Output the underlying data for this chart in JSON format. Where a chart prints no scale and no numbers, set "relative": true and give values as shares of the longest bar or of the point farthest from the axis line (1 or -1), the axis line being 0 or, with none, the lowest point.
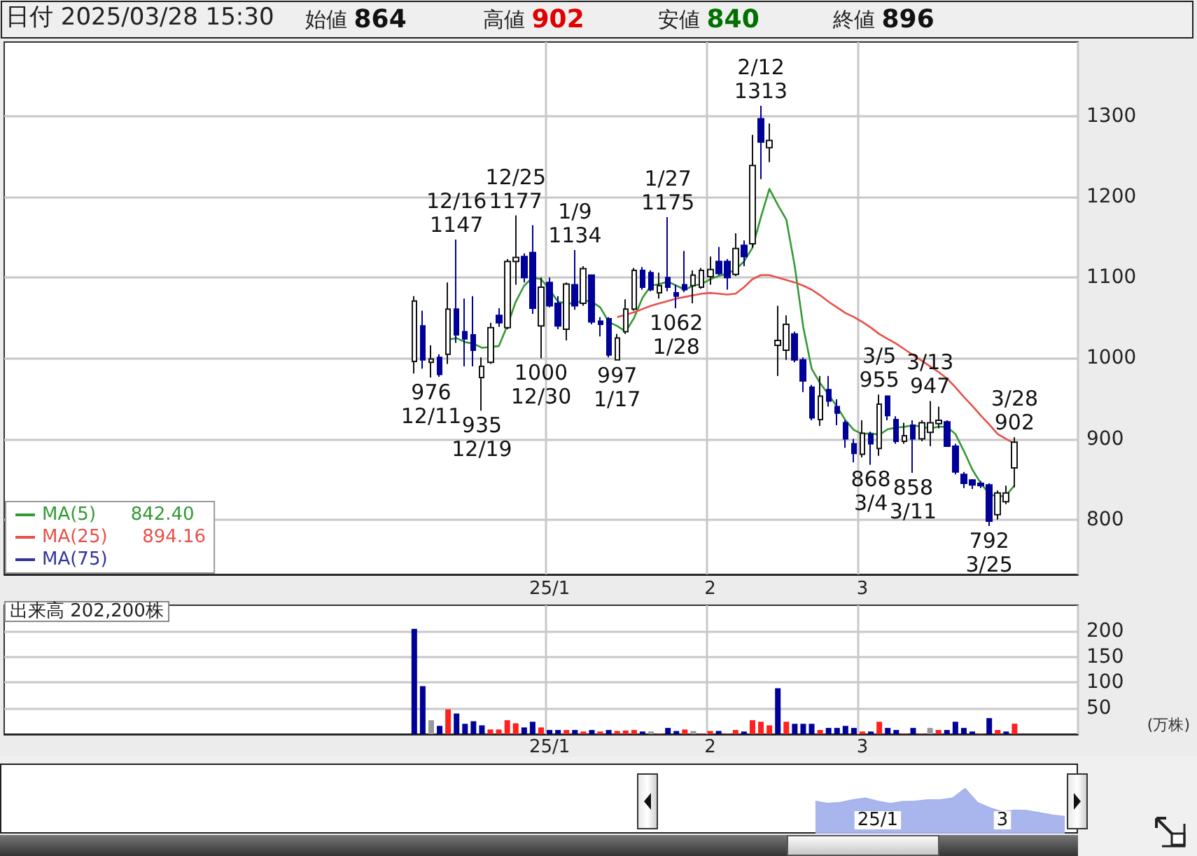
{
  "chart_data": [
    {
      "type": "candlestick",
      "title": "日付 2025/03/28 15:30",
      "annotations": [
        "始値 864",
        "高値 902",
        "安値 840",
        "終値 896",
        "842.40",
        "894.16",
        {
          "text": "976\n12/11",
          "y": 976
        },
        {
          "text": "12/16\n1147",
          "y": 1147
        },
        {
          "text": "935\n12/19",
          "y": 935
        },
        {
          "text": "12/25\n1177",
          "y": 1177
        },
        {
          "text": "1000\n12/30",
          "y": 1000
        },
        {
          "text": "1/9\n1134",
          "y": 1134
        },
        {
          "text": "997\n1/17",
          "y": 997
        },
        {
          "text": "1/27\n1175",
          "y": 1175
        },
        {
          "text": "1062\n1/28",
          "y": 1062
        },
        {
          "text": "2/12\n1313",
          "y": 1313
        },
        {
          "text": "868\n3/4",
          "y": 868
        },
        {
          "text": "3/5\n955",
          "y": 955
        },
        {
          "text": "858\n3/11",
          "y": 858
        },
        {
          "text": "3/13\n947",
          "y": 947
        },
        {
          "text": "792\n3/25",
          "y": 792
        },
        {
          "text": "3/28\n902",
          "y": 902
        }
      ],
      "categories": [
        null,
        null,
        null,
        null,
        null,
        null,
        null,
        null,
        null,
        null,
        null,
        null,
        null,
        null,
        null,
        null,
        null,
        null,
        null,
        null,
        null,
        null,
        null,
        null,
        null,
        null,
        null,
        null,
        null,
        null,
        null,
        null,
        null,
        null,
        null,
        null,
        null,
        null,
        null,
        null,
        null,
        null,
        null,
        null,
        null,
        null,
        null,
        null,
        null,
        null,
        null,
        null,
        null,
        null,
        null,
        null,
        null,
        null,
        null,
        null,
        null,
        null,
        null,
        null,
        "25/1",
        null,
        null,
        null,
        null,
        null,
        null,
        null,
        null,
        null,
        null,
        null,
        null,
        null,
        null,
        null,
        null,
        null,
        null,
        "2",
        null,
        null,
        null,
        null,
        null,
        null,
        null,
        null,
        null,
        null,
        null,
        null,
        null,
        null,
        null,
        null,
        null,
        "3",
        null,
        null,
        null,
        null,
        null,
        null,
        null,
        null,
        null,
        null,
        null,
        null,
        null,
        null,
        null,
        null,
        null,
        null,
        null,
        null,
        null,
        null,
        null,
        null,
        null
      ],
      "ohlc": [
        null,
        null,
        null,
        null,
        null,
        null,
        null,
        null,
        null,
        null,
        null,
        null,
        null,
        null,
        null,
        null,
        null,
        null,
        null,
        null,
        null,
        null,
        null,
        null,
        null,
        null,
        null,
        null,
        null,
        null,
        null,
        null,
        null,
        null,
        null,
        null,
        null,
        null,
        null,
        null,
        null,
        null,
        null,
        null,
        null,
        null,
        null,
        null,
        [
          996,
          1077,
          981,
          1071
        ],
        [
          1040,
          1059,
          987,
          998
        ],
        [
          995,
          1016,
          976,
          999
        ],
        [
          1001,
          1005,
          977,
          980
        ],
        [
          1005,
          1094,
          993,
          1061
        ],
        [
          1061,
          1147,
          1019,
          1029
        ],
        [
          1033,
          1074,
          990,
          1024
        ],
        [
          1029,
          1077,
          990,
          1010
        ],
        [
          976,
          1001,
          935,
          990
        ],
        [
          995,
          1044,
          993,
          1038
        ],
        [
          1053,
          1062,
          1039,
          1044
        ],
        [
          1038,
          1123,
          1036,
          1120
        ],
        [
          1120,
          1177,
          1091,
          1125
        ],
        [
          1126,
          1130,
          1094,
          1100
        ],
        [
          1131,
          1165,
          1055,
          1062
        ],
        [
          1040,
          1100,
          1000,
          1088
        ],
        [
          1094,
          1100,
          1063,
          1065
        ],
        [
          1068,
          1077,
          1036,
          1040
        ],
        [
          1036,
          1094,
          1022,
          1092
        ],
        [
          1091,
          1134,
          1060,
          1065
        ],
        [
          1068,
          1114,
          1065,
          1111
        ],
        [
          1103,
          1104,
          1042,
          1045
        ],
        [
          1046,
          1051,
          1027,
          1042
        ],
        [
          1049,
          1051,
          1001,
          1004
        ],
        [
          998,
          1030,
          997,
          1025
        ],
        [
          1033,
          1073,
          1030,
          1061
        ],
        [
          1061,
          1112,
          1059,
          1109
        ],
        [
          1109,
          1113,
          1085,
          1088
        ],
        [
          1106,
          1109,
          1083,
          1085
        ],
        [
          1081,
          1106,
          1074,
          1090
        ],
        [
          1100,
          1175,
          1083,
          1088
        ],
        [
          1081,
          1091,
          1062,
          1077
        ],
        [
          1091,
          1133,
          1082,
          1085
        ],
        [
          1090,
          1109,
          1068,
          1103
        ],
        [
          1088,
          1112,
          1086,
          1109
        ],
        [
          1101,
          1126,
          1091,
          1110
        ],
        [
          1120,
          1138,
          1103,
          1105
        ],
        [
          1120,
          1123,
          1085,
          1100
        ],
        [
          1104,
          1155,
          1102,
          1136
        ],
        [
          1140,
          1146,
          1114,
          1126
        ],
        [
          1142,
          1277,
          1137,
          1239
        ],
        [
          1297,
          1313,
          1222,
          1268
        ],
        [
          1261,
          1291,
          1243,
          1270
        ],
        [
          1016,
          1065,
          978,
          1022
        ],
        [
          1010,
          1053,
          998,
          1042
        ],
        [
          1030,
          1033,
          995,
          998
        ],
        [
          998,
          1001,
          958,
          972
        ],
        [
          964,
          967,
          923,
          926
        ],
        [
          924,
          978,
          916,
          953
        ],
        [
          961,
          978,
          940,
          947
        ],
        [
          940,
          949,
          917,
          932
        ],
        [
          920,
          923,
          889,
          900
        ],
        [
          894,
          900,
          871,
          882
        ],
        [
          881,
          923,
          877,
          907
        ],
        [
          906,
          909,
          868,
          894
        ],
        [
          888,
          955,
          879,
          943
        ],
        [
          953,
          953,
          923,
          929
        ],
        [
          924,
          928,
          894,
          897
        ],
        [
          897,
          920,
          894,
          904
        ],
        [
          917,
          923,
          858,
          900
        ],
        [
          900,
          923,
          897,
          920
        ],
        [
          908,
          947,
          891,
          920
        ],
        [
          919,
          940,
          913,
          923
        ],
        [
          921,
          923,
          891,
          891
        ],
        [
          891,
          894,
          856,
          859
        ],
        [
          856,
          859,
          839,
          845
        ],
        [
          849,
          850,
          838,
          843
        ],
        [
          845,
          848,
          839,
          842
        ],
        [
          843,
          845,
          792,
          798
        ],
        [
          806,
          836,
          800,
          833
        ],
        [
          822,
          842,
          819,
          833
        ],
        [
          864,
          902,
          840,
          896
        ],
        null,
        null,
        null,
        null,
        null,
        null,
        null
      ],
      "colors": [
        null,
        null,
        null,
        null,
        null,
        null,
        null,
        null,
        null,
        null,
        null,
        null,
        null,
        null,
        null,
        null,
        null,
        null,
        null,
        null,
        null,
        null,
        null,
        null,
        null,
        null,
        null,
        null,
        null,
        null,
        null,
        null,
        null,
        null,
        null,
        null,
        null,
        null,
        null,
        null,
        null,
        null,
        null,
        null,
        null,
        null,
        null,
        null,
        "#ffffff",
        "#000099",
        "#ffffff",
        "#000099",
        "#ffffff",
        "#000099",
        "#000099",
        "#000099",
        "#ffffff",
        "#ffffff",
        "#000099",
        "#ffffff",
        "#ffffff",
        "#000099",
        "#000099",
        "#ffffff",
        "#000099",
        "#000099",
        "#ffffff",
        "#000099",
        "#ffffff",
        "#000099",
        "#000099",
        "#000099",
        "#ffffff",
        "#ffffff",
        "#ffffff",
        "#000099",
        "#000099",
        "#ffffff",
        "#000099",
        "#000099",
        "#000099",
        "#ffffff",
        "#ffffff",
        "#ffffff",
        "#000099",
        "#000099",
        "#ffffff",
        "#000099",
        "#ffffff",
        "#000099",
        "#ffffff",
        "#ffffff",
        "#ffffff",
        "#000099",
        "#000099",
        "#000099",
        "#ffffff",
        "#000099",
        "#000099",
        "#000099",
        "#000099",
        "#ffffff",
        "#000099",
        "#ffffff",
        "#000099",
        "#000099",
        "#ffffff",
        "#000099",
        "#ffffff",
        "#ffffff",
        "#ffffff",
        "#000099",
        "#000099",
        "#000099",
        "#000099",
        "#000099",
        "#000099",
        "#ffffff",
        "#ffffff",
        "#ffffff",
        null,
        null,
        null,
        null,
        null,
        null,
        null
      ],
      "series": [
        {
          "name": "MA(5)",
          "type": "line",
          "color": "#339933",
          "values": [
            null,
            null,
            null,
            null,
            null,
            null,
            null,
            null,
            null,
            null,
            null,
            null,
            null,
            null,
            null,
            null,
            null,
            null,
            null,
            null,
            null,
            null,
            null,
            null,
            null,
            null,
            null,
            null,
            null,
            null,
            null,
            null,
            null,
            null,
            null,
            null,
            null,
            null,
            null,
            null,
            null,
            null,
            null,
            null,
            null,
            null,
            null,
            null,
            null,
            null,
            null,
            null,
            1023,
            1025,
            1020,
            1018,
            1013,
            1014,
            1015,
            1040,
            1070,
            1090,
            1100,
            1098,
            1085,
            1070,
            1068,
            1068,
            1072,
            1070,
            1063,
            1045,
            1040,
            1033,
            1050,
            1075,
            1090,
            1092,
            1095,
            1090,
            1085,
            1090,
            1092,
            1098,
            1102,
            1105,
            1110,
            1120,
            1137,
            1175,
            1210,
            1190,
            1172,
            1114,
            1039,
            987,
            969,
            955,
            940,
            923,
            911,
            906,
            907,
            905,
            912,
            914,
            915,
            917,
            915,
            913,
            915,
            915,
            906,
            885,
            862,
            845,
            832,
            828,
            830,
            842.4,
            null,
            null,
            null,
            null,
            null,
            null,
            null
          ]
        },
        {
          "name": "MA(25)",
          "type": "line",
          "color": "#e8504a",
          "values": [
            null,
            null,
            null,
            null,
            null,
            null,
            null,
            null,
            null,
            null,
            null,
            null,
            null,
            null,
            null,
            null,
            null,
            null,
            null,
            null,
            null,
            null,
            null,
            null,
            null,
            null,
            null,
            null,
            null,
            null,
            null,
            null,
            null,
            null,
            null,
            null,
            null,
            null,
            null,
            null,
            null,
            null,
            null,
            null,
            null,
            null,
            null,
            null,
            null,
            null,
            null,
            null,
            null,
            null,
            null,
            null,
            null,
            null,
            null,
            null,
            null,
            null,
            null,
            null,
            null,
            null,
            null,
            null,
            null,
            null,
            null,
            null,
            1051,
            1054,
            1057,
            1061,
            1065,
            1068,
            1071,
            1074,
            1076,
            1078,
            1080,
            1081,
            1080,
            1079,
            1080,
            1088,
            1098,
            1103,
            1103,
            1100,
            1097,
            1094,
            1090,
            1085,
            1078,
            1070,
            1063,
            1056,
            1051,
            1045,
            1038,
            1030,
            1024,
            1018,
            1011,
            1004,
            997,
            990,
            983,
            975,
            964,
            952,
            941,
            929,
            918,
            906,
            900,
            894.16,
            null,
            null,
            null,
            null,
            null,
            null,
            null
          ]
        },
        {
          "name": "MA(75)",
          "type": "line",
          "color": "#333399",
          "values": [
            null,
            null,
            null,
            null,
            null,
            null,
            null,
            null,
            null,
            null,
            null,
            null,
            null,
            null,
            null,
            null,
            null,
            null,
            null,
            null,
            null,
            null,
            null,
            null,
            null,
            null,
            null,
            null,
            null,
            null,
            null,
            null,
            null,
            null,
            null,
            null,
            null,
            null,
            null,
            null,
            null,
            null,
            null,
            null,
            null,
            null,
            null,
            null,
            null,
            null,
            null,
            null,
            null,
            null,
            null,
            null,
            null,
            null,
            null,
            null,
            null,
            null,
            null,
            null,
            null,
            null,
            null,
            null,
            null,
            null,
            null,
            null,
            null,
            null,
            null,
            null,
            null,
            null,
            null,
            null,
            null,
            null,
            null,
            null,
            null,
            null,
            null,
            null,
            null,
            null,
            null,
            null,
            null,
            null,
            null,
            null,
            null,
            null,
            null,
            null,
            null,
            null,
            null,
            null,
            null,
            null,
            null,
            null,
            null,
            null,
            null,
            null,
            null,
            null,
            null,
            null,
            null,
            null,
            null,
            null,
            null,
            null,
            null,
            null,
            null,
            null,
            null
          ]
        }
      ],
      "ylim": [
        732,
        1392
      ],
      "yticks": [
        800,
        900,
        1000,
        1100,
        1200,
        1300
      ],
      "grid": true,
      "legend": "bottom left",
      "marker": "none"
    },
    {
      "type": "bar",
      "title": "出来高 202,200株",
      "ylabel": "(万株)",
      "categories": [
        null,
        null,
        null,
        null,
        null,
        null,
        null,
        null,
        null,
        null,
        null,
        null,
        null,
        null,
        null,
        null,
        null,
        null,
        null,
        null,
        null,
        null,
        null,
        null,
        null,
        null,
        null,
        null,
        null,
        null,
        null,
        null,
        null,
        null,
        null,
        null,
        null,
        null,
        null,
        null,
        null,
        null,
        null,
        null,
        null,
        null,
        null,
        null,
        null,
        null,
        null,
        null,
        null,
        null,
        null,
        null,
        null,
        null,
        null,
        null,
        null,
        null,
        null,
        null,
        "25/1",
        null,
        null,
        null,
        null,
        null,
        null,
        null,
        null,
        null,
        null,
        null,
        null,
        null,
        null,
        null,
        null,
        null,
        null,
        "2",
        null,
        null,
        null,
        null,
        null,
        null,
        null,
        null,
        null,
        null,
        null,
        null,
        null,
        null,
        null,
        null,
        null,
        "3",
        null,
        null,
        null,
        null,
        null,
        null,
        null,
        null,
        null,
        null,
        null,
        null,
        null,
        null,
        null,
        null,
        null,
        null,
        null,
        null,
        null,
        null,
        null,
        null,
        null
      ],
      "values": [
        null,
        null,
        null,
        null,
        null,
        null,
        null,
        null,
        null,
        null,
        null,
        null,
        null,
        null,
        null,
        null,
        null,
        null,
        null,
        null,
        null,
        null,
        null,
        null,
        null,
        null,
        null,
        null,
        null,
        null,
        null,
        null,
        null,
        null,
        null,
        null,
        null,
        null,
        null,
        null,
        null,
        null,
        null,
        null,
        null,
        null,
        null,
        null,
        204,
        93,
        27,
        16,
        48,
        40,
        20,
        25,
        17,
        9,
        9,
        27,
        21,
        13,
        24,
        13,
        8,
        8,
        8,
        8,
        5,
        8,
        5,
        8,
        6,
        7,
        8,
        5,
        5,
        1,
        12,
        6,
        9,
        6,
        1,
        6,
        6,
        1,
        8,
        5,
        27,
        24,
        17,
        89,
        24,
        20,
        20,
        20,
        8,
        12,
        12,
        16,
        12,
        5,
        5,
        24,
        12,
        8,
        1,
        12,
        1,
        12,
        8,
        8,
        24,
        12,
        5,
        1,
        31,
        8,
        5,
        20.22,
        null,
        null,
        null,
        null,
        null,
        null,
        null
      ],
      "colors": [
        null,
        null,
        null,
        null,
        null,
        null,
        null,
        null,
        null,
        null,
        null,
        null,
        null,
        null,
        null,
        null,
        null,
        null,
        null,
        null,
        null,
        null,
        null,
        null,
        null,
        null,
        null,
        null,
        null,
        null,
        null,
        null,
        null,
        null,
        null,
        null,
        null,
        null,
        null,
        null,
        null,
        null,
        null,
        null,
        null,
        null,
        null,
        null,
        "#000099",
        "#000099",
        "#999999",
        "#000099",
        "#ff2020",
        "#000099",
        "#000099",
        "#000099",
        "#000099",
        "#ff2020",
        "#ff2020",
        "#ff2020",
        "#ff2020",
        "#000099",
        "#000099",
        "#ff2020",
        "#000099",
        "#000099",
        "#ff2020",
        "#000099",
        "#ff2020",
        "#000099",
        "#ff2020",
        "#000099",
        "#ff2020",
        "#ff2020",
        "#ff2020",
        "#000099",
        "#999999",
        "#ff2020",
        "#000099",
        "#000099",
        "#ff2020",
        "#999999",
        "#ff2020",
        "#ff2020",
        "#000099",
        "#ff2020",
        "#ff2020",
        "#000099",
        "#ff2020",
        "#ff2020",
        "#ff2020",
        "#000099",
        "#ff2020",
        "#000099",
        "#000099",
        "#000099",
        "#ff2020",
        "#000099",
        "#000099",
        "#000099",
        "#000099",
        "#ff2020",
        "#000099",
        "#ff2020",
        "#000099",
        "#000099",
        "#ff2020",
        "#000099",
        "#ff2020",
        "#999999",
        "#ff2020",
        "#000099",
        "#000099",
        "#000099",
        "#000099",
        "#ff2020",
        "#000099",
        "#ff2020",
        "#000099",
        "#ff2020",
        null,
        null,
        null,
        null,
        null,
        null,
        null
      ],
      "ylim": [
        0,
        250
      ],
      "yticks": [
        50,
        100,
        150,
        200
      ],
      "grid": true
    },
    {
      "type": "area",
      "relative": true,
      "color": "#a4b2ec",
      "categories": [
        null,
        null,
        null,
        null,
        null,
        "25/1",
        null,
        null,
        null,
        null,
        null,
        null,
        null,
        null,
        null,
        "3",
        null,
        null,
        null,
        null,
        null
      ],
      "values": [
        0.72,
        0.67,
        0.69,
        0.75,
        0.79,
        0.72,
        0.67,
        0.71,
        0.72,
        0.75,
        0.75,
        0.79,
        1,
        0.69,
        0.57,
        0.48,
        0.52,
        0.51,
        0.46,
        0.41,
        0.38
      ]
    }
  ]
}
